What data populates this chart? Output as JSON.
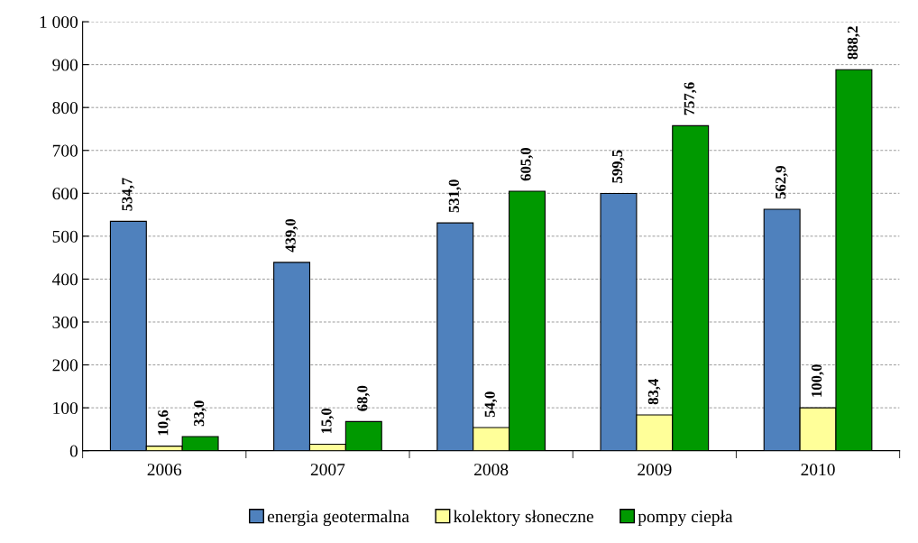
{
  "chart_data": {
    "type": "bar",
    "categories": [
      "2006",
      "2007",
      "2008",
      "2009",
      "2010"
    ],
    "series": [
      {
        "name": "energia geotermalna",
        "color": "#4f81bd",
        "values": [
          534.7,
          439.0,
          531.0,
          599.5,
          562.9
        ],
        "value_labels": [
          "534,7",
          "439,0",
          "531,0",
          "599,5",
          "562,9"
        ]
      },
      {
        "name": "kolektory słoneczne",
        "color": "#ffff99",
        "values": [
          10.6,
          15.0,
          54.0,
          83.4,
          100.0
        ],
        "value_labels": [
          "10,6",
          "15,0",
          "54,0",
          "83,4",
          "100,0"
        ]
      },
      {
        "name": "pompy ciepła",
        "color": "#009900",
        "values": [
          33.0,
          68.0,
          605.0,
          757.6,
          888.2
        ],
        "value_labels": [
          "33,0",
          "68,0",
          "605,0",
          "757,6",
          "888,2"
        ]
      }
    ],
    "ylim": [
      0,
      1000
    ],
    "yticks": [
      0,
      100,
      200,
      300,
      400,
      500,
      600,
      700,
      800,
      900,
      {
        "value": 1000,
        "label": "1 000"
      }
    ],
    "grid": "y",
    "legend": "bottom"
  }
}
